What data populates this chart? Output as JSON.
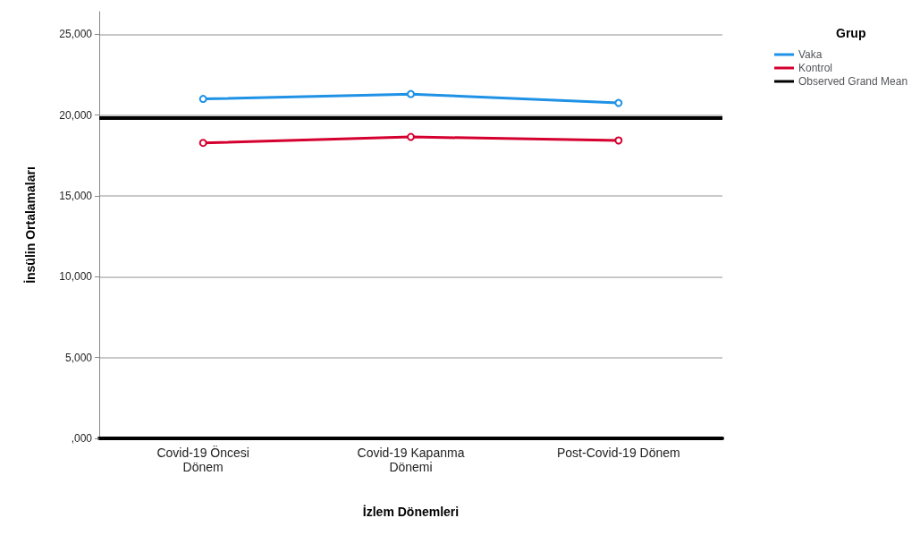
{
  "chart_data": {
    "type": "line",
    "xlabel": "İzlem Dönemleri",
    "ylabel": "İnsülin Ortalamaları",
    "legend_title": "Grup",
    "categories": [
      "Covid-19 Öncesi\nDönem",
      "Covid-19 Kapanma\nDönemi",
      "Post-Covid-19 Dönem"
    ],
    "series": [
      {
        "name": "Vaka",
        "color": "#1f92e6",
        "values": [
          21000,
          21300,
          20750
        ]
      },
      {
        "name": "Kontrol",
        "color": "#d5002f",
        "values": [
          18280,
          18650,
          18430
        ]
      }
    ],
    "ylim": [
      0,
      26400
    ],
    "yticks": [
      {
        "value": 0,
        "label": ",000"
      },
      {
        "value": 5000,
        "label": "5,000"
      },
      {
        "value": 10000,
        "label": "10,000"
      },
      {
        "value": 15000,
        "label": "15,000"
      },
      {
        "value": 20000,
        "label": "20,000"
      },
      {
        "value": 25000,
        "label": "25,000"
      }
    ],
    "ref_lines": [
      {
        "axis": "y",
        "value": 19830,
        "label": "Observed Grand Mean",
        "color": "#000000"
      }
    ],
    "grid": "y",
    "legend": "top right",
    "marker": "circle",
    "line_style": "solid"
  }
}
